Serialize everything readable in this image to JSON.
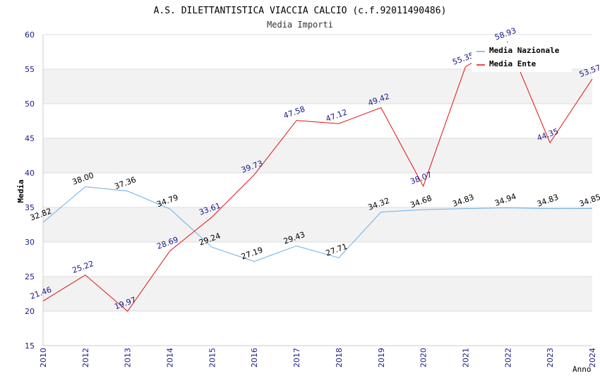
{
  "chart_data": {
    "type": "line",
    "title": "A.S. DILETTANTISTICA VIACCIA CALCIO (c.f.92011490486)",
    "subtitle": "Media Importi",
    "xlabel": "Anno",
    "ylabel": "Media",
    "ylim": [
      15,
      60
    ],
    "yticks": [
      "15",
      "20",
      "25",
      "30",
      "35",
      "40",
      "45",
      "50",
      "55",
      "60"
    ],
    "categories": [
      "2010",
      "2012",
      "2013",
      "2014",
      "2015",
      "2016",
      "2017",
      "2018",
      "2019",
      "2020",
      "2021",
      "2022",
      "2023",
      "2024"
    ],
    "series": [
      {
        "name": "Media Nazionale",
        "color": "#6aaee6",
        "label_color": "#000000",
        "values": [
          32.82,
          38.0,
          37.36,
          34.79,
          29.24,
          27.19,
          29.43,
          27.71,
          34.32,
          34.68,
          34.83,
          34.94,
          34.83,
          34.85
        ],
        "labels": [
          "32.82",
          "38.00",
          "37.36",
          "34.79",
          "29.24",
          "27.19",
          "29.43",
          "27.71",
          "34.32",
          "34.68",
          "34.83",
          "34.94",
          "34.83",
          "34.85"
        ]
      },
      {
        "name": "Media Ente",
        "color": "#e01010",
        "label_color": "#1a1a8c",
        "values": [
          21.46,
          25.22,
          19.97,
          28.69,
          33.61,
          39.73,
          47.58,
          47.12,
          49.42,
          38.07,
          55.35,
          58.93,
          44.35,
          53.57
        ],
        "labels": [
          "21.46",
          "25.22",
          "19.97",
          "28.69",
          "33.61",
          "39.73",
          "47.58",
          "47.12",
          "49.42",
          "38.07",
          "55.35",
          "58.93",
          "44.35",
          "53.57"
        ]
      }
    ],
    "grid": true,
    "legend": "top-right",
    "colors": {
      "title": "#000000",
      "subtitle": "#333333",
      "tick": "#1a1a8c",
      "band": "#f2f2f2",
      "grid": "#dddddd",
      "axis": "#cccccc"
    }
  }
}
